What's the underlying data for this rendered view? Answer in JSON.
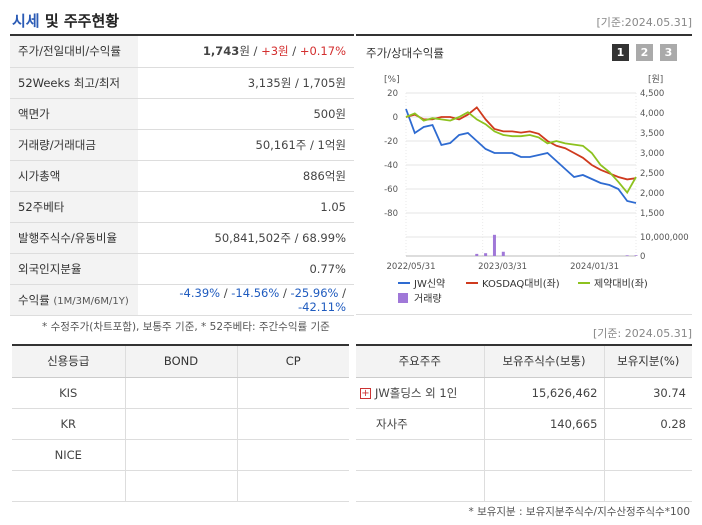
{
  "header": {
    "title_hl": "시세",
    "title_rest": " 및 주주현황",
    "std_date": "[기준:2024.05.31]"
  },
  "info": {
    "rows": [
      {
        "key": "주가/전일대비/수익률",
        "price": "1,743",
        "price_unit": "원",
        "sep1": " / ",
        "chg": "+3원",
        "sep2": " / ",
        "ret": "+0.17%"
      },
      {
        "key": "52Weeks 최고/최저",
        "value": "3,135원 / 1,705원"
      },
      {
        "key": "액면가",
        "value": "500원"
      },
      {
        "key": "거래량/거래대금",
        "value": "50,161주 / 1억원"
      },
      {
        "key": "시가총액",
        "value": "886억원"
      },
      {
        "key": "52주베타",
        "value": "1.05"
      },
      {
        "key": "발행주식수/유동비율",
        "value": "50,841,502주 / 68.99%"
      },
      {
        "key": "외국인지분율",
        "value": "0.77%"
      },
      {
        "key": "수익률",
        "key_small": "(1M/3M/6M/1Y)",
        "r1": "-4.39%",
        "r2": "-14.56%",
        "r3": "-25.96%",
        "r4": "-42.11%",
        "sep": "/ "
      }
    ],
    "note": "* 수정주가(차트포함), 보통주 기준, * 52주베타: 주간수익률 기준"
  },
  "chart_panel": {
    "title": "주가/상대수익률",
    "pages": [
      "1",
      "2",
      "3"
    ],
    "legend_jw": "JW신약",
    "legend_kosdaq": "KOSDAQ대비(좌)",
    "legend_pharma": "제약대비(좌)",
    "legend_vol": "거래량"
  },
  "chart_data": {
    "type": "line",
    "left_axis_unit": "[%]",
    "right_axis_unit": "[원]",
    "left_ticks": [
      "20",
      "0",
      "-20",
      "-40",
      "-60",
      "-80"
    ],
    "right_ticks": [
      "4,500",
      "4,000",
      "3,500",
      "3,000",
      "2,500",
      "2,000",
      "1,500"
    ],
    "volume_tick": "10,000,000",
    "volume_zero": "0",
    "x_ticks": [
      "2022/05/31",
      "2023/03/31",
      "2024/01/31"
    ],
    "ylim_left": [
      -80,
      20
    ],
    "ylim_right": [
      1500,
      4500
    ],
    "colors": {
      "jw": "#2e6bd1",
      "kosdaq": "#cf3a1e",
      "pharma": "#8dc21f",
      "volume": "#a078d8"
    },
    "series": [
      {
        "name": "JW신약",
        "axis": "right",
        "values": [
          4100,
          3500,
          3650,
          3700,
          3200,
          3250,
          3450,
          3500,
          3300,
          3100,
          3000,
          3000,
          3000,
          2900,
          2900,
          2950,
          3000,
          2800,
          2600,
          2400,
          2450,
          2350,
          2250,
          2200,
          2100,
          1800,
          1750
        ]
      },
      {
        "name": "KOSDAQ대비(좌)",
        "axis": "left",
        "values": [
          0,
          2,
          -2,
          -2,
          0,
          0,
          -2,
          2,
          8,
          -2,
          -10,
          -12,
          -12,
          -13,
          -12,
          -14,
          -20,
          -24,
          -26,
          -30,
          -34,
          -40,
          -44,
          -47,
          -50,
          -52,
          -51
        ]
      },
      {
        "name": "제약대비(좌)",
        "axis": "left",
        "values": [
          0,
          3,
          -3,
          -1,
          -2,
          -3,
          0,
          4,
          -2,
          -6,
          -12,
          -15,
          -16,
          -16,
          -15,
          -17,
          -22,
          -20,
          -22,
          -23,
          -24,
          -30,
          -40,
          -46,
          -54,
          -63,
          -50
        ]
      }
    ],
    "volume": [
      0,
      0,
      0,
      0,
      0,
      0,
      0,
      0,
      0.3,
      0.4,
      3.0,
      0.6,
      0,
      0,
      0,
      0,
      0,
      0,
      0,
      0,
      0,
      0,
      0,
      0,
      0,
      0.1,
      0.1
    ]
  },
  "std_date2": "[기준: 2024.05.31]",
  "credit": {
    "headers": [
      "신용등급",
      "BOND",
      "CP"
    ],
    "rows": [
      [
        "KIS",
        "",
        ""
      ],
      [
        "KR",
        "",
        ""
      ],
      [
        "NICE",
        "",
        ""
      ],
      [
        "",
        "",
        ""
      ]
    ]
  },
  "holders": {
    "headers": [
      "주요주주",
      "보유주식수(보통)",
      "보유지분(%)"
    ],
    "rows": [
      {
        "name": "JW홀딩스 외 1인",
        "shares": "15,626,462",
        "pct": "30.74",
        "expand": "+"
      },
      {
        "name": "자사주",
        "shares": "140,665",
        "pct": "0.28"
      }
    ],
    "note": "* 보유지분 : 보유지분주식수/지수산정주식수*100"
  }
}
